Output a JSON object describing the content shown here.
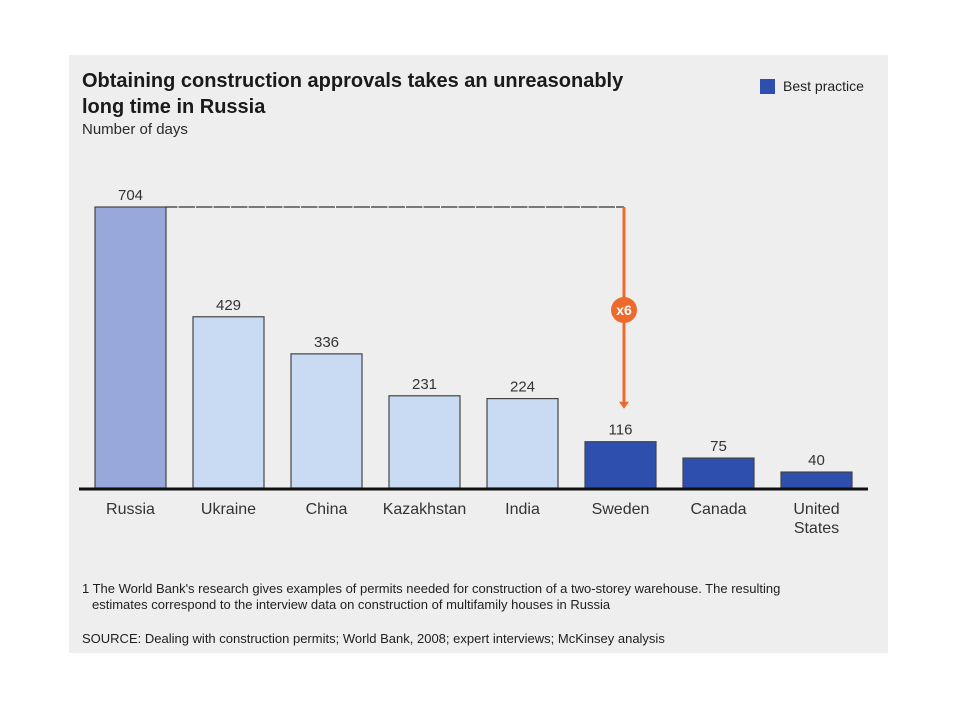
{
  "title_line1": "Obtaining construction approvals takes an unreasonably",
  "title_line2": "long time in Russia",
  "subtitle": "Number of days",
  "legend": {
    "label": "Best practice",
    "color": "#2e4fae"
  },
  "annotation": {
    "label": "x6",
    "color": "#ee6a2c"
  },
  "footnote_line1": "1 The World Bank's research gives examples of permits needed for construction of a two-storey warehouse. The resulting",
  "footnote_line2": "estimates correspond to the interview data on construction of multifamily houses in Russia",
  "source": "SOURCE: Dealing with construction permits; World Bank, 2008; expert interviews; McKinsey analysis",
  "colors": {
    "russia": "#98a8da",
    "others": "#c9dbf2",
    "best_practice": "#2e4fae",
    "outline": "#444444"
  },
  "chart_data": {
    "type": "bar",
    "title": "Obtaining construction approvals takes an unreasonably long time in Russia",
    "subtitle": "Number of days",
    "xlabel": "",
    "ylabel": "Number of days",
    "ylim": [
      0,
      704
    ],
    "grid": false,
    "legend_position": "top-right",
    "categories": [
      "Russia",
      "Ukraine",
      "China",
      "Kazakhstan",
      "India",
      "Sweden",
      "Canada",
      "United States"
    ],
    "category_label_lines": [
      [
        "Russia"
      ],
      [
        "Ukraine"
      ],
      [
        "China"
      ],
      [
        "Kazakhstan"
      ],
      [
        "India"
      ],
      [
        "Sweden"
      ],
      [
        "Canada"
      ],
      [
        "United",
        "States"
      ]
    ],
    "values": [
      704,
      429,
      336,
      231,
      224,
      116,
      75,
      40
    ],
    "groups": [
      "russia",
      "others",
      "others",
      "others",
      "others",
      "best_practice",
      "best_practice",
      "best_practice"
    ],
    "legend": [
      "Best practice"
    ],
    "annotations": [
      {
        "text": "x6",
        "from": "Russia",
        "to": "Sweden"
      }
    ]
  }
}
